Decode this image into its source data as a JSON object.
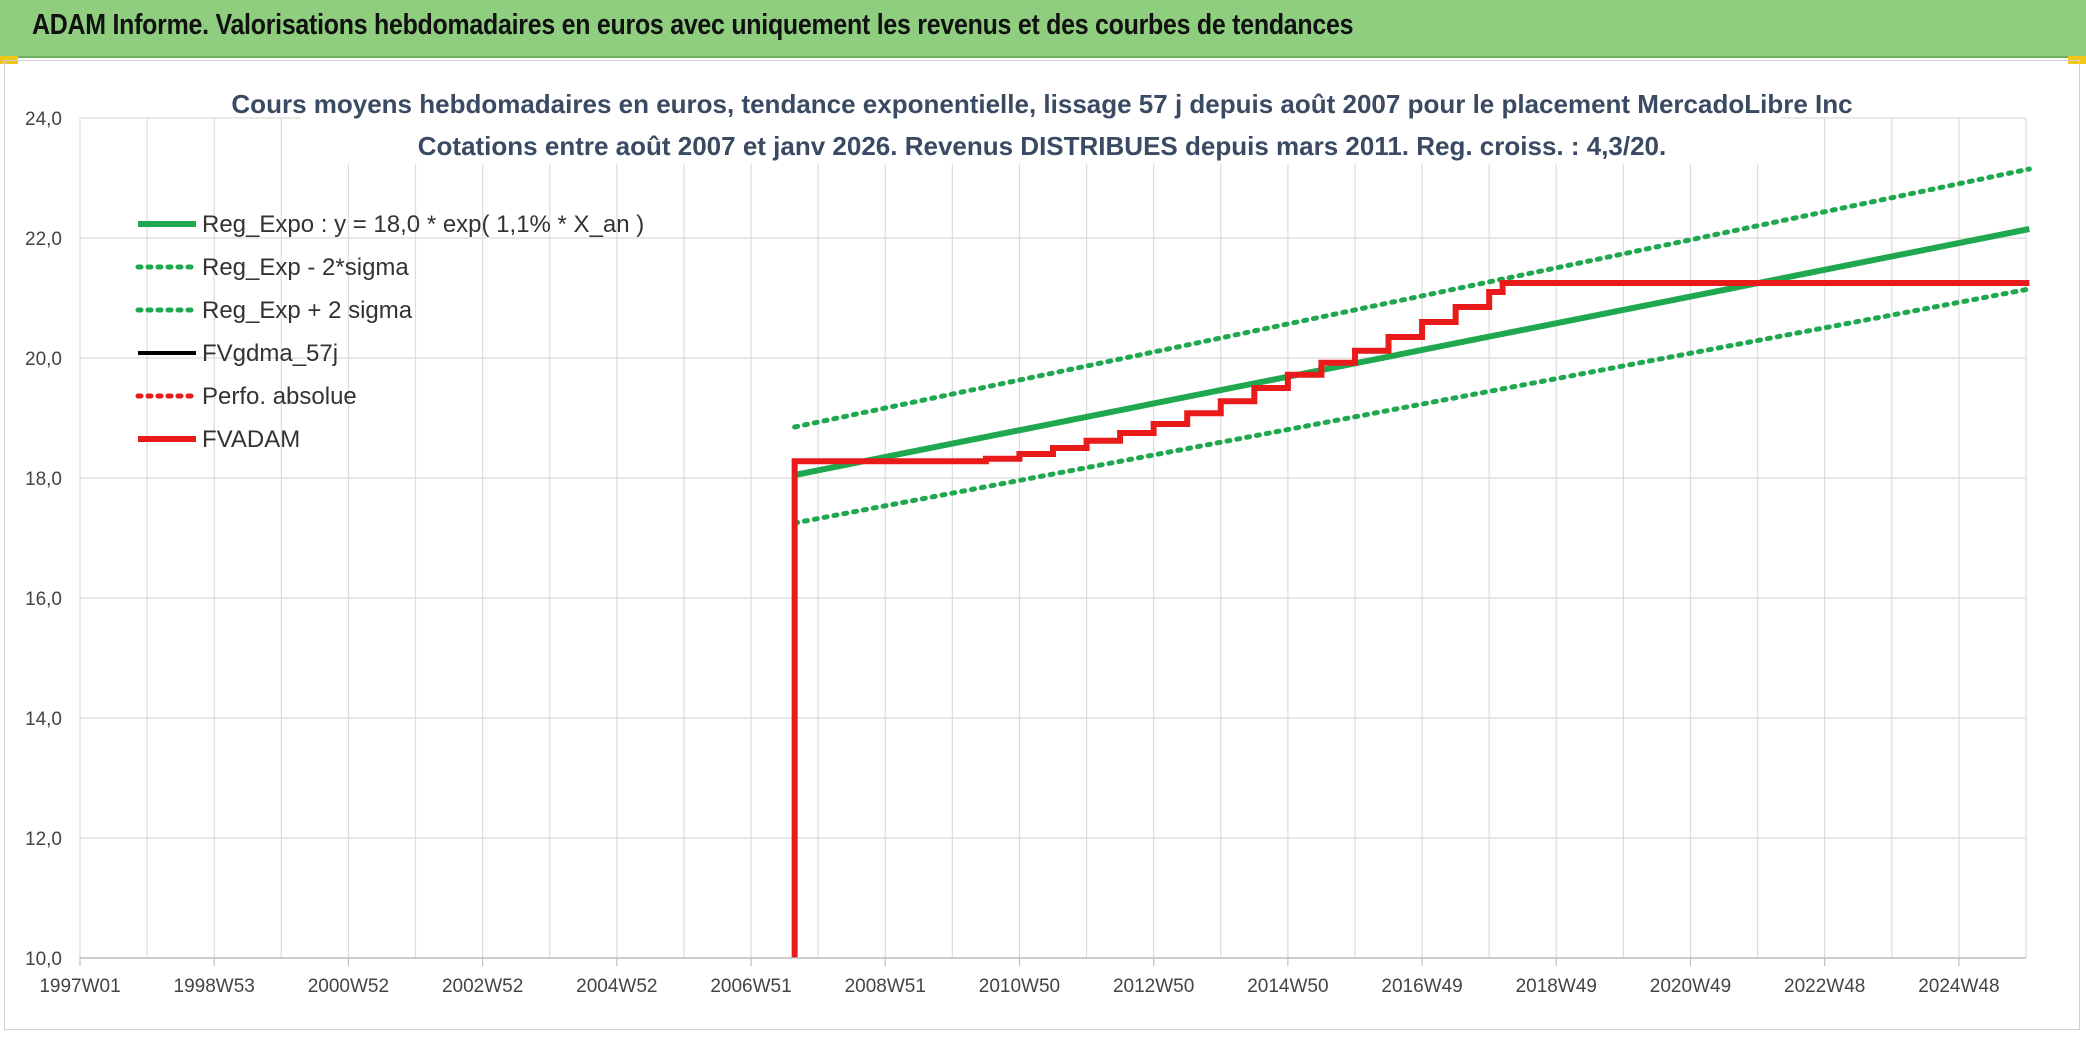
{
  "header": {
    "title": "ADAM Informe. Valorisations hebdomadaires en euros avec uniquement les revenus et des courbes de tendances"
  },
  "colors": {
    "banner": "#8fce7f",
    "trend_green": "#1fa84f",
    "adam_red": "#e81a1a",
    "fvgdma_black": "#000000",
    "grid": "#dcdcdc"
  },
  "chart_data": {
    "type": "line",
    "title": "Cours moyens hebdomadaires en euros, tendance exponentielle, lissage 57 j depuis août 2007 pour le placement MercadoLibre Inc",
    "subtitle": "Cotations entre août 2007 et janv 2026. Revenus DISTRIBUES depuis mars 2011. Reg. croiss. : 4,3/20.",
    "xlabel": "",
    "ylabel": "",
    "xlim": [
      1997.0,
      2026.0
    ],
    "ylim": [
      10.0,
      24.0
    ],
    "y_ticks": [
      "10,0",
      "12,0",
      "14,0",
      "16,0",
      "18,0",
      "20,0",
      "22,0",
      "24,0"
    ],
    "y_tick_values": [
      10,
      12,
      14,
      16,
      18,
      20,
      22,
      24
    ],
    "x_ticks": [
      {
        "label": "1997W01",
        "value": 1997.0
      },
      {
        "label": "1998W53",
        "value": 1999.0
      },
      {
        "label": "2000W52",
        "value": 2001.0
      },
      {
        "label": "2002W52",
        "value": 2003.0
      },
      {
        "label": "2004W52",
        "value": 2005.0
      },
      {
        "label": "2006W51",
        "value": 2007.0
      },
      {
        "label": "2008W51",
        "value": 2009.0
      },
      {
        "label": "2010W50",
        "value": 2011.0
      },
      {
        "label": "2012W50",
        "value": 2013.0
      },
      {
        "label": "2014W50",
        "value": 2015.0
      },
      {
        "label": "2016W49",
        "value": 2017.0
      },
      {
        "label": "2018W49",
        "value": 2019.0
      },
      {
        "label": "2020W49",
        "value": 2021.0
      },
      {
        "label": "2022W48",
        "value": 2023.0
      },
      {
        "label": "2024W48",
        "value": 2025.0
      }
    ],
    "legend_position": "top-left",
    "series": [
      {
        "name": "Reg_Expo : y = 18,0 * exp( 1,1% *  X_an )",
        "style": "solid-thick",
        "color": "#1fa84f",
        "x": [
          2007.65,
          2026.05
        ],
        "y": [
          18.05,
          22.15
        ]
      },
      {
        "name": "Reg_Exp - 2*sigma",
        "style": "dotted",
        "color": "#1fa84f",
        "x": [
          2007.65,
          2026.05
        ],
        "y": [
          17.25,
          21.15
        ]
      },
      {
        "name": "Reg_Exp + 2 sigma",
        "style": "dotted",
        "color": "#1fa84f",
        "x": [
          2007.65,
          2026.05
        ],
        "y": [
          18.85,
          23.15
        ]
      },
      {
        "name": "FVgdma_57j",
        "style": "solid",
        "color": "#000000",
        "x": [],
        "y": []
      },
      {
        "name": "Perfo. absolue",
        "style": "dotted",
        "color": "#e81a1a",
        "x": [],
        "y": []
      },
      {
        "name": "FVADAM",
        "style": "solid-thick",
        "color": "#e81a1a",
        "x": [
          2007.65,
          2007.65,
          2010.2,
          2010.5,
          2011.0,
          2011.5,
          2012.0,
          2012.5,
          2013.0,
          2013.5,
          2014.0,
          2014.5,
          2015.0,
          2015.5,
          2016.0,
          2016.5,
          2017.0,
          2017.5,
          2018.0,
          2018.2,
          2026.05
        ],
        "y": [
          10.0,
          18.28,
          18.28,
          18.32,
          18.4,
          18.5,
          18.62,
          18.75,
          18.9,
          19.08,
          19.28,
          19.5,
          19.72,
          19.92,
          20.12,
          20.35,
          20.6,
          20.85,
          21.1,
          21.25,
          21.25
        ]
      }
    ]
  }
}
